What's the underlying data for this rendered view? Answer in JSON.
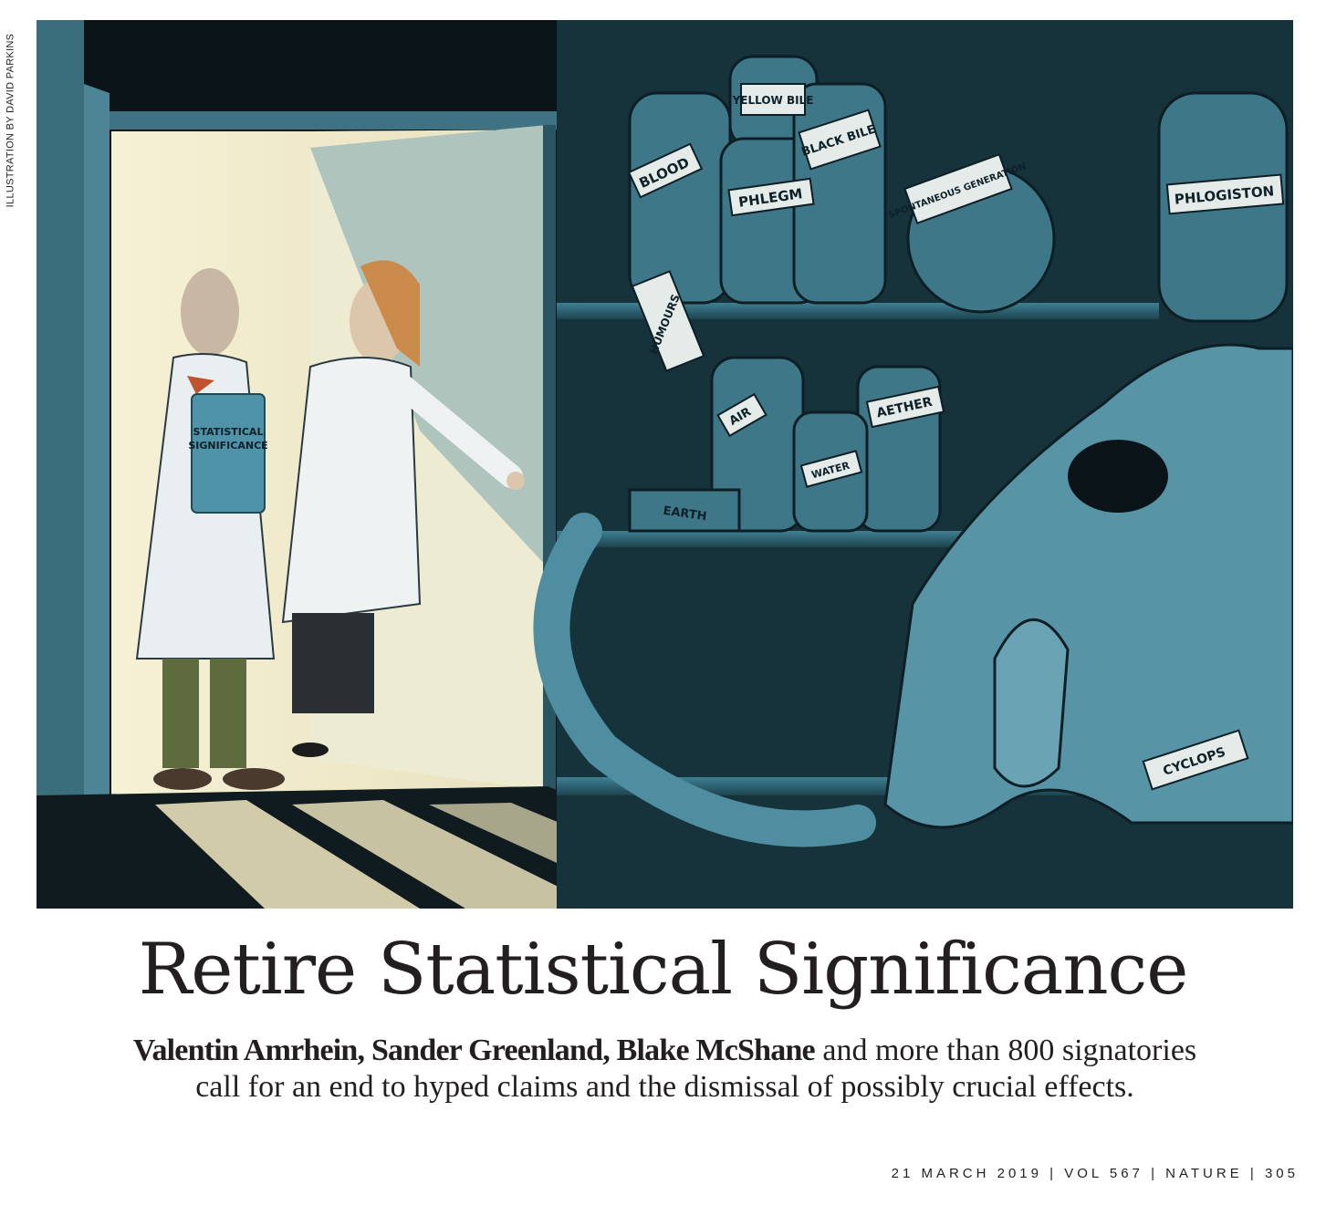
{
  "credit": "ILLUSTRATION BY DAVID PARKINS",
  "illustration": {
    "labels": {
      "blood": "BLOOD",
      "yellow_bile": "YELLOW BILE",
      "black_bile": "BLACK BILE",
      "phlegm": "PHLEGM",
      "spontaneous_generation": "SPONTANEOUS GENERATION",
      "phlogiston": "PHLOGISTON",
      "humours": "HUMOURS",
      "air": "AIR",
      "aether": "AETHER",
      "water": "WATER",
      "earth": "EARTH",
      "cyclops": "CYCLOPS",
      "book_line1": "STATISTICAL",
      "book_line2": "SIGNIFICANCE"
    }
  },
  "headline": "Retire Statistical Significance",
  "standfirst": {
    "author1": "Valentin Amrhein",
    "sep1": ", ",
    "author2": "Sander Greenland",
    "sep2": ", ",
    "author3": "Blake McShane",
    "rest": " and more than 800 signatories",
    "line2": "call for an end to hyped claims and the dismissal of possibly crucial effects."
  },
  "footer": {
    "date": "21 MARCH 2019",
    "volume": "VOL 567",
    "journal": "NATURE",
    "page": "305",
    "separator": "|"
  }
}
